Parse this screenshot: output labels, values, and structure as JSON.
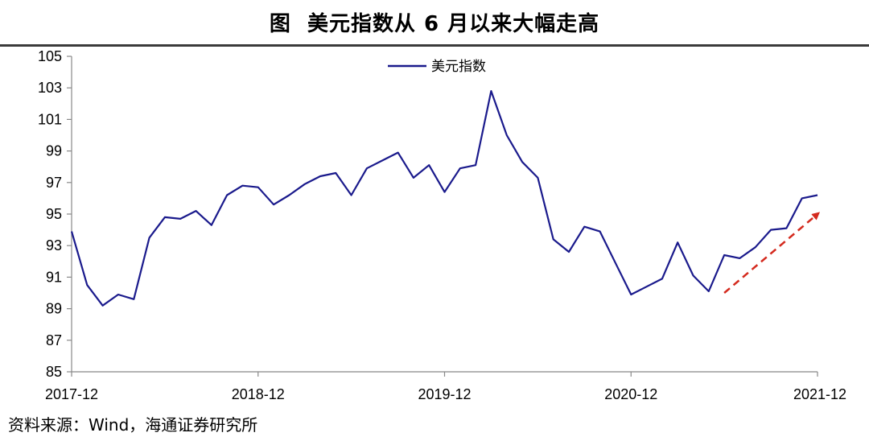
{
  "chart_data": {
    "type": "line",
    "title": "图  美元指数从 6 月以来大幅走高",
    "xlabel": "",
    "ylabel": "",
    "ylim": [
      85,
      105
    ],
    "yticks": [
      85,
      87,
      89,
      91,
      93,
      95,
      97,
      99,
      101,
      103,
      105
    ],
    "xticks": [
      "2017-12",
      "2018-12",
      "2019-12",
      "2020-12",
      "2021-12"
    ],
    "legend": "top-center",
    "grid": false,
    "series": [
      {
        "name": "美元指数",
        "color": "#1a1a8c",
        "points": [
          [
            "2017-12",
            93.9
          ],
          [
            "2018-01",
            90.5
          ],
          [
            "2018-02",
            89.2
          ],
          [
            "2018-03",
            89.9
          ],
          [
            "2018-04",
            89.6
          ],
          [
            "2018-05",
            93.5
          ],
          [
            "2018-06",
            94.8
          ],
          [
            "2018-07",
            94.7
          ],
          [
            "2018-08",
            95.2
          ],
          [
            "2018-09",
            94.3
          ],
          [
            "2018-10",
            96.2
          ],
          [
            "2018-11",
            96.8
          ],
          [
            "2018-12",
            96.7
          ],
          [
            "2019-01",
            95.6
          ],
          [
            "2019-02",
            96.2
          ],
          [
            "2019-03",
            96.9
          ],
          [
            "2019-04",
            97.4
          ],
          [
            "2019-05",
            97.6
          ],
          [
            "2019-06",
            96.2
          ],
          [
            "2019-07",
            97.9
          ],
          [
            "2019-08",
            98.4
          ],
          [
            "2019-09",
            98.9
          ],
          [
            "2019-10",
            97.3
          ],
          [
            "2019-11",
            98.1
          ],
          [
            "2019-12",
            96.4
          ],
          [
            "2020-01",
            97.9
          ],
          [
            "2020-02",
            98.1
          ],
          [
            "2020-03",
            102.8
          ],
          [
            "2020-04",
            100.0
          ],
          [
            "2020-05",
            98.3
          ],
          [
            "2020-06",
            97.3
          ],
          [
            "2020-07",
            93.4
          ],
          [
            "2020-08",
            92.6
          ],
          [
            "2020-09",
            94.2
          ],
          [
            "2020-10",
            93.9
          ],
          [
            "2020-11",
            91.9
          ],
          [
            "2020-12",
            89.9
          ],
          [
            "2021-01",
            90.4
          ],
          [
            "2021-02",
            90.9
          ],
          [
            "2021-03",
            93.2
          ],
          [
            "2021-04",
            91.1
          ],
          [
            "2021-05",
            90.1
          ],
          [
            "2021-06",
            92.4
          ],
          [
            "2021-07",
            92.2
          ],
          [
            "2021-08",
            92.9
          ],
          [
            "2021-09",
            94.0
          ],
          [
            "2021-10",
            94.1
          ],
          [
            "2021-11",
            96.0
          ],
          [
            "2021-12",
            96.2
          ]
        ]
      }
    ],
    "annotations": [
      {
        "type": "arrow",
        "style": "dashed",
        "color": "#d42a1e",
        "from": [
          "2021-06",
          90.0
        ],
        "to": [
          "2021-12",
          95.0
        ]
      }
    ]
  },
  "source_text": "资料来源：Wind，海通证券研究所"
}
